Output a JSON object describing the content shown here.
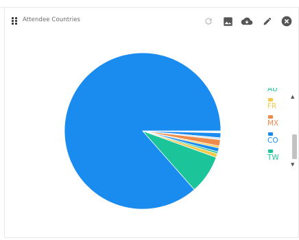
{
  "widget": {
    "title": "Attendee Countries"
  },
  "toolbar": {
    "refresh_icon": "refresh-icon",
    "image_icon": "image-icon",
    "download_icon": "cloud-download-icon",
    "edit_icon": "pencil-icon",
    "close_icon": "close-circle-icon"
  },
  "chart_data": {
    "type": "pie",
    "slices": [
      {
        "label": "",
        "value": 86.5,
        "color": "#1a8cf0"
      },
      {
        "label": "",
        "value": 0.4,
        "color": "#f2f2f2"
      },
      {
        "label": "",
        "value": 1.0,
        "color": "#1a8cf0"
      },
      {
        "label": "",
        "value": 0.4,
        "color": "#cfe6fb"
      },
      {
        "label": "",
        "value": 1.3,
        "color": "#f08a4b"
      },
      {
        "label": "",
        "value": 0.4,
        "color": "#f2c94c"
      },
      {
        "label": "",
        "value": 0.8,
        "color": "#1a8cf0"
      },
      {
        "label": "",
        "value": 0.4,
        "color": "#1cc49a"
      },
      {
        "label": "",
        "value": 0.8,
        "color": "#f2c94c"
      },
      {
        "label": "",
        "value": 8.0,
        "color": "#1cc49a"
      }
    ],
    "legend": {
      "position": "right",
      "items": [
        {
          "label": "AU",
          "color": "#1cc49a"
        },
        {
          "label": "FR",
          "color": "#f2c94c"
        },
        {
          "label": "MX",
          "color": "#f08a4b"
        },
        {
          "label": "CO",
          "color": "#1a8cf0"
        },
        {
          "label": "TW",
          "color": "#1cc49a"
        }
      ]
    }
  }
}
